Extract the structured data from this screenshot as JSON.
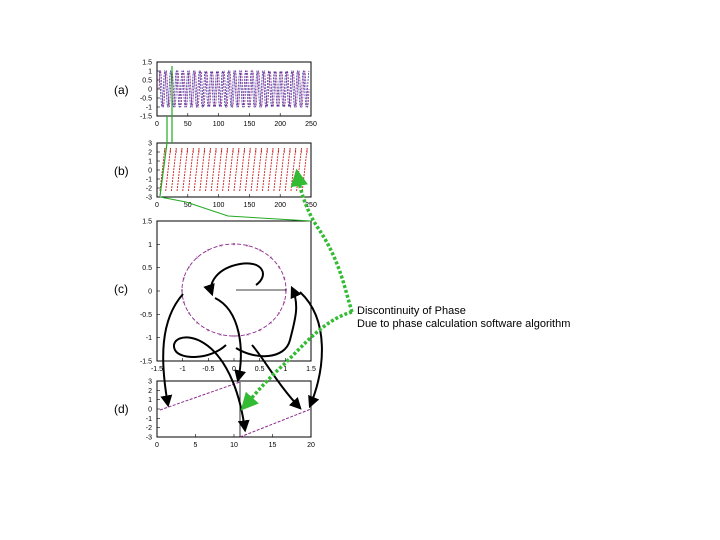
{
  "panels": {
    "a": "(a)",
    "b": "(b)",
    "c": "(c)",
    "d": "(d)"
  },
  "annotation": {
    "line1": "Discontinuity of Phase",
    "line2": "Due to phase calculation software algorithm"
  },
  "colors": {
    "blue": "#3a3aa8",
    "purple": "#8a2a8a",
    "red": "#cc2020",
    "green_line": "#22aa22",
    "green_arrow": "#33bb33",
    "black": "#000000"
  },
  "chart_data": [
    {
      "type": "line",
      "panel": "(a)",
      "xlim": [
        0,
        250
      ],
      "ylim": [
        -1.5,
        1.5
      ],
      "xticks": [
        "0",
        "50",
        "100",
        "150",
        "200",
        "250"
      ],
      "yticks": [
        "1.5",
        "1",
        "0.5",
        "0",
        "-0.5",
        "-1",
        "-1.5"
      ],
      "series": [
        {
          "style": "cos",
          "color": "blue",
          "cycles": 26
        },
        {
          "style": "sin",
          "color": "purple",
          "cycles": 26
        }
      ]
    },
    {
      "type": "line",
      "panel": "(b)",
      "xlim": [
        0,
        250
      ],
      "ylim": [
        -3,
        3
      ],
      "xticks": [
        "0",
        "50",
        "100",
        "150",
        "200",
        "250"
      ],
      "yticks": [
        "3",
        "2",
        "1",
        "0",
        "-1",
        "-2",
        "-3"
      ],
      "series": [
        {
          "style": "sawtooth",
          "color": "red",
          "cycles": 26
        }
      ]
    },
    {
      "type": "scatter",
      "panel": "(c)",
      "xlim": [
        -1.5,
        1.5
      ],
      "ylim": [
        -1.5,
        1.5
      ],
      "xticks": [
        "-1.5",
        "-1",
        "-0.5",
        "0",
        "0.5",
        "1",
        "1.5"
      ],
      "yticks": [
        "1.5",
        "1",
        "0.5",
        "0",
        "-0.5",
        "-1",
        "-1.5"
      ],
      "circle_radius": 1
    },
    {
      "type": "line",
      "panel": "(d)",
      "xlim": [
        0,
        20
      ],
      "ylim": [
        -3,
        3
      ],
      "xticks": [
        "0",
        "5",
        "10",
        "15",
        "20"
      ],
      "yticks": [
        "3",
        "2",
        "1",
        "0",
        "-1",
        "-2",
        "-3"
      ],
      "series": [
        {
          "style": "phase",
          "color": "purple",
          "x": [
            0,
            11.5
          ],
          "y": [
            -0.3,
            3.1
          ]
        },
        {
          "style": "phase",
          "color": "purple",
          "x": [
            11.5,
            20
          ],
          "y": [
            -3.1,
            -0.3
          ]
        }
      ]
    }
  ]
}
